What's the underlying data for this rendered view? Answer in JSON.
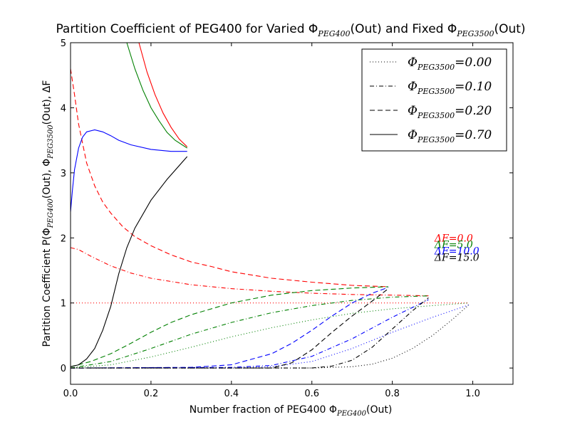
{
  "chart_data": {
    "type": "line",
    "title": "Partition Coefficient of PEG400 for Varied Φ_PEG400(Out) and Fixed Φ_PEG3500(Out)",
    "title_parts": {
      "prefix": "Partition Coefficient of PEG400 for Varied Φ",
      "sub1": "PEG400",
      "mid": "(Out) and Fixed Φ",
      "sub2": "PEG3500",
      "suffix": "(Out)"
    },
    "xlabel": "Number fraction of PEG400 Φ_PEG400(Out)",
    "xlabel_parts": {
      "prefix": "Number fraction of PEG400 Φ",
      "sub": "PEG400",
      "suffix": "(Out)"
    },
    "ylabel": "Partition Coefficient P(Φ_PEG400(Out), Φ_PEG3500(Out), ΔF",
    "ylabel_parts": {
      "prefix": "Partition Coefficient P(Φ",
      "sub1": "PEG400",
      "mid": "(Out), Φ",
      "sub2": "PEG3500",
      "suffix": "(Out), ΔF"
    },
    "xlim": [
      0,
      1.1
    ],
    "ylim": [
      -0.25,
      5
    ],
    "xticks": [
      0.0,
      0.2,
      0.4,
      0.6,
      0.8,
      1.0
    ],
    "xtick_labels": [
      "0.0",
      "0.2",
      "0.4",
      "0.6",
      "0.8",
      "1.0"
    ],
    "yticks": [
      0,
      1,
      2,
      3,
      4,
      5
    ],
    "ytick_labels": [
      "0",
      "1",
      "2",
      "3",
      "4",
      "5"
    ],
    "grid": false,
    "legend": {
      "placement": "top-right",
      "entries": [
        {
          "sym": "Φ",
          "sub": "PEG3500",
          "eq": "=0.00",
          "dash": "1,3"
        },
        {
          "sym": "Φ",
          "sub": "PEG3500",
          "eq": "=0.10",
          "dash": "6,3,1,3"
        },
        {
          "sym": "Φ",
          "sub": "PEG3500",
          "eq": "=0.20",
          "dash": "7,4"
        },
        {
          "sym": "Φ",
          "sub": "PEG3500",
          "eq": "=0.70",
          "dash": ""
        }
      ]
    },
    "annotations": [
      {
        "text": "ΔF=0.0",
        "color": "#ff0000"
      },
      {
        "text": "ΔF=5.0",
        "color": "#008000"
      },
      {
        "text": "ΔF=10.0",
        "color": "#0000ff"
      },
      {
        "text": "ΔF=15.0",
        "color": "#000000"
      }
    ],
    "annotation_anchor_x": 0.905,
    "annotation_anchor_y": [
      2.0,
      1.9,
      1.8,
      1.7
    ],
    "series": [
      {
        "df": "0.0",
        "phi3500": "0.00",
        "color": "#ff0000",
        "dash": "1,3",
        "x": [
          0,
          0.99
        ],
        "y": [
          1.0,
          1.0
        ]
      },
      {
        "df": "0.0",
        "phi3500": "0.10",
        "color": "#ff0000",
        "dash": "6,3,1,3",
        "x": [
          0,
          0.02,
          0.05,
          0.1,
          0.15,
          0.2,
          0.3,
          0.4,
          0.5,
          0.6,
          0.7,
          0.8,
          0.89
        ],
        "y": [
          1.85,
          1.82,
          1.72,
          1.57,
          1.46,
          1.38,
          1.28,
          1.22,
          1.18,
          1.15,
          1.13,
          1.12,
          1.11
        ]
      },
      {
        "df": "0.0",
        "phi3500": "0.20",
        "color": "#ff0000",
        "dash": "7,4",
        "x": [
          0,
          0.01,
          0.02,
          0.04,
          0.06,
          0.08,
          0.1,
          0.13,
          0.16,
          0.2,
          0.25,
          0.3,
          0.35,
          0.4,
          0.5,
          0.6,
          0.7,
          0.79
        ],
        "y": [
          4.6,
          4.2,
          3.75,
          3.15,
          2.8,
          2.55,
          2.38,
          2.17,
          2.02,
          1.88,
          1.74,
          1.63,
          1.56,
          1.48,
          1.38,
          1.32,
          1.27,
          1.25
        ]
      },
      {
        "df": "0.0",
        "phi3500": "0.70",
        "color": "#ff0000",
        "dash": "",
        "x": [
          0.17,
          0.19,
          0.21,
          0.23,
          0.25,
          0.27,
          0.29
        ],
        "y": [
          5.0,
          4.55,
          4.2,
          3.92,
          3.7,
          3.52,
          3.4
        ]
      },
      {
        "df": "5.0",
        "phi3500": "0.00",
        "color": "#008000",
        "dash": "1,3",
        "x": [
          0,
          0.1,
          0.2,
          0.3,
          0.4,
          0.5,
          0.6,
          0.7,
          0.8,
          0.9,
          0.99
        ],
        "y": [
          0.0,
          0.05,
          0.17,
          0.32,
          0.48,
          0.62,
          0.74,
          0.84,
          0.91,
          0.96,
          1.0
        ]
      },
      {
        "df": "5.0",
        "phi3500": "0.10",
        "color": "#008000",
        "dash": "6,3,1,3",
        "x": [
          0,
          0.1,
          0.2,
          0.3,
          0.4,
          0.5,
          0.6,
          0.7,
          0.8,
          0.89
        ],
        "y": [
          0.0,
          0.1,
          0.3,
          0.52,
          0.7,
          0.85,
          0.96,
          1.04,
          1.09,
          1.11
        ]
      },
      {
        "df": "5.0",
        "phi3500": "0.20",
        "color": "#008000",
        "dash": "7,4",
        "x": [
          0,
          0.05,
          0.1,
          0.15,
          0.2,
          0.25,
          0.3,
          0.4,
          0.5,
          0.6,
          0.7,
          0.79
        ],
        "y": [
          0.02,
          0.1,
          0.22,
          0.38,
          0.55,
          0.7,
          0.82,
          1.0,
          1.12,
          1.19,
          1.23,
          1.25
        ]
      },
      {
        "df": "5.0",
        "phi3500": "0.70",
        "color": "#008000",
        "dash": "",
        "x": [
          0.14,
          0.16,
          0.18,
          0.2,
          0.22,
          0.24,
          0.26,
          0.29
        ],
        "y": [
          5.0,
          4.6,
          4.27,
          4.0,
          3.8,
          3.62,
          3.5,
          3.38
        ]
      },
      {
        "df": "10.0",
        "phi3500": "0.00",
        "color": "#0000ff",
        "dash": "1,3",
        "x": [
          0,
          0.4,
          0.5,
          0.6,
          0.7,
          0.8,
          0.9,
          0.99
        ],
        "y": [
          0.0,
          0.0,
          0.02,
          0.1,
          0.3,
          0.55,
          0.78,
          0.97
        ]
      },
      {
        "df": "10.0",
        "phi3500": "0.10",
        "color": "#0000ff",
        "dash": "6,3,1,3",
        "x": [
          0,
          0.4,
          0.5,
          0.6,
          0.7,
          0.8,
          0.89
        ],
        "y": [
          0.0,
          0.01,
          0.04,
          0.18,
          0.45,
          0.78,
          1.05
        ]
      },
      {
        "df": "10.0",
        "phi3500": "0.20",
        "color": "#0000ff",
        "dash": "7,4",
        "x": [
          0,
          0.3,
          0.4,
          0.5,
          0.55,
          0.6,
          0.65,
          0.7,
          0.75,
          0.79
        ],
        "y": [
          0.0,
          0.01,
          0.05,
          0.22,
          0.38,
          0.58,
          0.8,
          1.0,
          1.15,
          1.24
        ]
      },
      {
        "df": "10.0",
        "phi3500": "0.70",
        "color": "#0000ff",
        "dash": "",
        "x": [
          0,
          0.005,
          0.01,
          0.02,
          0.03,
          0.04,
          0.06,
          0.08,
          0.1,
          0.12,
          0.15,
          0.2,
          0.25,
          0.29
        ],
        "y": [
          2.4,
          2.75,
          3.05,
          3.38,
          3.55,
          3.63,
          3.66,
          3.63,
          3.57,
          3.5,
          3.43,
          3.36,
          3.33,
          3.33
        ]
      },
      {
        "df": "15.0",
        "phi3500": "0.00",
        "color": "#000000",
        "dash": "1,3",
        "x": [
          0,
          0.6,
          0.7,
          0.75,
          0.8,
          0.85,
          0.9,
          0.95,
          0.99
        ],
        "y": [
          0.0,
          0.0,
          0.02,
          0.06,
          0.15,
          0.3,
          0.5,
          0.75,
          0.97
        ]
      },
      {
        "df": "15.0",
        "phi3500": "0.10",
        "color": "#000000",
        "dash": "6,3,1,3",
        "x": [
          0,
          0.6,
          0.65,
          0.7,
          0.75,
          0.8,
          0.85,
          0.89
        ],
        "y": [
          0.0,
          0.0,
          0.03,
          0.12,
          0.32,
          0.6,
          0.88,
          1.08
        ]
      },
      {
        "df": "15.0",
        "phi3500": "0.20",
        "color": "#000000",
        "dash": "7,4",
        "x": [
          0,
          0.5,
          0.55,
          0.6,
          0.65,
          0.7,
          0.75,
          0.79
        ],
        "y": [
          0.0,
          0.0,
          0.08,
          0.28,
          0.55,
          0.8,
          1.03,
          1.22
        ]
      },
      {
        "df": "15.0",
        "phi3500": "0.70",
        "color": "#000000",
        "dash": "",
        "x": [
          0,
          0.02,
          0.04,
          0.06,
          0.08,
          0.1,
          0.12,
          0.14,
          0.16,
          0.2,
          0.24,
          0.29
        ],
        "y": [
          0.02,
          0.05,
          0.14,
          0.3,
          0.58,
          0.95,
          1.45,
          1.85,
          2.15,
          2.58,
          2.9,
          3.25
        ]
      }
    ]
  }
}
